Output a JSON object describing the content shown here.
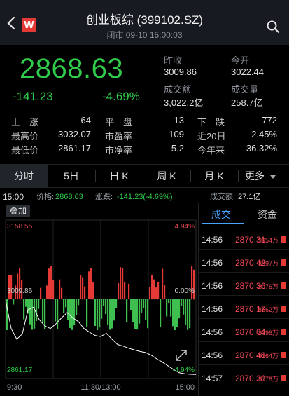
{
  "header": {
    "title": "创业板综 (399102.SZ)",
    "subtitle": "闭市 09-10 15:00:03",
    "logo": "W"
  },
  "quote": {
    "price": "2868.63",
    "change": "-141.23",
    "change_pct": "-4.69%",
    "prev_close_label": "昨收",
    "prev_close": "3009.86",
    "open_label": "今开",
    "open": "3022.44",
    "turnover_label": "成交额",
    "turnover": "3,022.2亿",
    "volume_label": "成交量",
    "volume": "258.7亿"
  },
  "stats": {
    "up_label": "上　涨",
    "up": "64",
    "flat_label": "平　盘",
    "flat": "13",
    "down_label": "下　跌",
    "down": "772",
    "high_label": "最高价",
    "high": "3032.07",
    "pe_label": "市盈率",
    "pe": "109",
    "d20_label": "近20日",
    "d20": "-2.45%",
    "low_label": "最低价",
    "low": "2861.17",
    "pb_label": "市净率",
    "pb": "5.2",
    "ytd_label": "今年来",
    "ytd": "36.32%"
  },
  "tabs": [
    "分时",
    "5日",
    "日 K",
    "周 K",
    "月 K",
    "更多"
  ],
  "infobar": {
    "time": "15:00",
    "price_label": "价格:",
    "price": "2868.63",
    "change_label": "涨跌:",
    "change": "-141.23(-4.69%)",
    "turnover_label": "成交额:",
    "turnover": "27.1亿"
  },
  "chart": {
    "overlay_button": "叠加",
    "y_top": "3158.55",
    "y_mid": "3009.86",
    "y_bottom": "2861.17",
    "pct_top": "4.94%",
    "pct_mid": "0.00%",
    "pct_bottom": "-4.94%",
    "x_labels": [
      "9:30",
      "11:30/13:00",
      "15:00"
    ],
    "colors": {
      "up": "#e53935",
      "down": "#3fbf4f",
      "line": "#ffffff",
      "grid": "#2a2a2a"
    }
  },
  "chart_data": {
    "type": "line",
    "title": "",
    "xlabel": "",
    "ylabel": "",
    "ylim": [
      2861.17,
      3158.55
    ],
    "x_ticks": [
      "9:30",
      "11:30/13:00",
      "15:00"
    ],
    "series": [
      {
        "values": [
          3008,
          2955,
          2935,
          2945,
          2990,
          2995,
          2972,
          2960,
          2955,
          2964,
          2975,
          2985,
          2975,
          2968,
          2955,
          2948,
          2942,
          2940,
          2946,
          2935,
          2925,
          2922,
          2918,
          2915,
          2912,
          2910,
          2905,
          2898,
          2892,
          2885,
          2878,
          2872,
          2870,
          2869,
          2868.63
        ]
      }
    ]
  },
  "trades": {
    "tab_active": "成交",
    "tab_other": "资金",
    "rows": [
      {
        "time": "14:56",
        "price": "2870.31",
        "vol": "9954万"
      },
      {
        "time": "14:56",
        "price": "2870.42",
        "vol": "8897万"
      },
      {
        "time": "14:56",
        "price": "2870.36",
        "vol": "8076万"
      },
      {
        "time": "14:56",
        "price": "2870.17",
        "vol": "8562万"
      },
      {
        "time": "14:56",
        "price": "2870.04",
        "vol": "8796万"
      },
      {
        "time": "14:56",
        "price": "2870.48",
        "vol": "9164万"
      },
      {
        "time": "14:57",
        "price": "2870.38",
        "vol": "8778万"
      }
    ]
  }
}
